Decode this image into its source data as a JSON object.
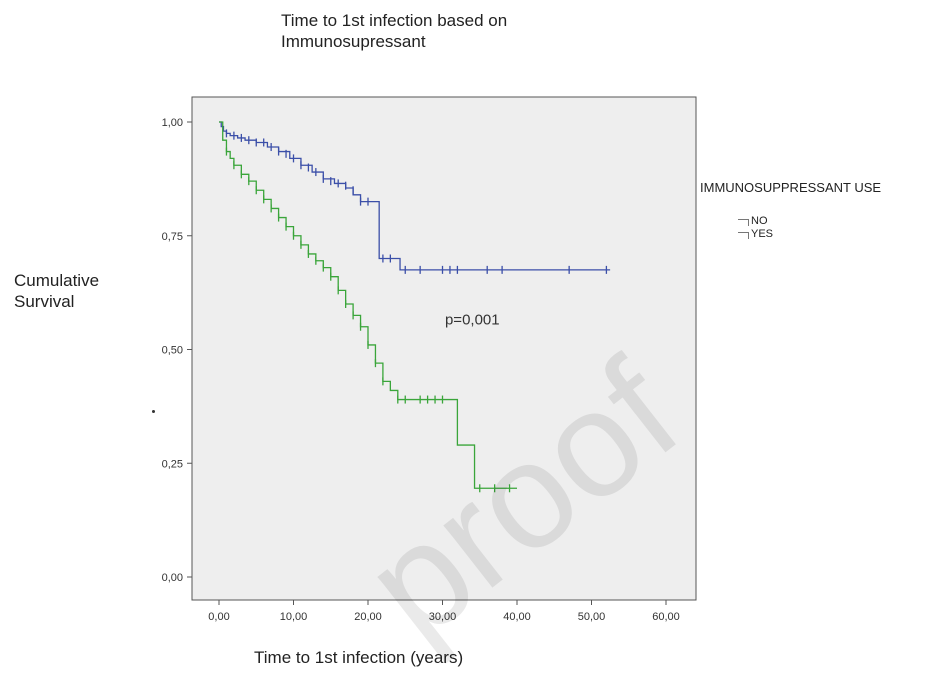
{
  "chart_data": {
    "type": "line",
    "title": "Time to 1st infection based on Immunosupressant",
    "xlabel": "Time to 1st infection (years)",
    "ylabel": "Cumulative Survival",
    "xlim": [
      -3,
      65
    ],
    "ylim": [
      -0.08,
      1.06
    ],
    "x_ticks": [
      "0,00",
      "10,00",
      "20,00",
      "30,00",
      "40,00",
      "50,00",
      "60,00"
    ],
    "x_tick_values": [
      0,
      10,
      20,
      30,
      40,
      50,
      60
    ],
    "y_ticks": [
      "0,00",
      "0,25",
      "0,50",
      "0,75",
      "1,00"
    ],
    "y_tick_values": [
      0,
      0.25,
      0.5,
      0.75,
      1.0
    ],
    "legend_title": "IMMUNOSUPPRESSANT USE",
    "legend_position": "right",
    "grid": false,
    "background": "#eeeeee",
    "annotation": "p=0,001",
    "watermark": "proof",
    "series": [
      {
        "name": "NO",
        "color": "#3b4fa8",
        "points": [
          [
            0,
            1.0
          ],
          [
            0.3,
            0.99
          ],
          [
            0.6,
            0.98
          ],
          [
            1.0,
            0.975
          ],
          [
            1.5,
            0.97
          ],
          [
            2.5,
            0.965
          ],
          [
            3.5,
            0.96
          ],
          [
            5,
            0.955
          ],
          [
            6.5,
            0.945
          ],
          [
            8,
            0.935
          ],
          [
            9.5,
            0.92
          ],
          [
            11,
            0.905
          ],
          [
            12.5,
            0.89
          ],
          [
            14,
            0.875
          ],
          [
            15.5,
            0.865
          ],
          [
            17,
            0.855
          ],
          [
            18,
            0.84
          ],
          [
            19,
            0.825
          ],
          [
            21,
            0.825
          ],
          [
            21.5,
            0.7
          ],
          [
            24,
            0.7
          ],
          [
            24.3,
            0.675
          ],
          [
            52.5,
            0.675
          ]
        ],
        "censors": [
          [
            1,
            0.975
          ],
          [
            2,
            0.97
          ],
          [
            3,
            0.965
          ],
          [
            4,
            0.96
          ],
          [
            5,
            0.955
          ],
          [
            6,
            0.955
          ],
          [
            7,
            0.945
          ],
          [
            8,
            0.935
          ],
          [
            9,
            0.93
          ],
          [
            10,
            0.92
          ],
          [
            11,
            0.905
          ],
          [
            12,
            0.9
          ],
          [
            13,
            0.89
          ],
          [
            14,
            0.875
          ],
          [
            15,
            0.87
          ],
          [
            16,
            0.865
          ],
          [
            17,
            0.86
          ],
          [
            18,
            0.85
          ],
          [
            19,
            0.825
          ],
          [
            20,
            0.825
          ],
          [
            22,
            0.7
          ],
          [
            23,
            0.7
          ],
          [
            25,
            0.675
          ],
          [
            27,
            0.675
          ],
          [
            30,
            0.675
          ],
          [
            31,
            0.675
          ],
          [
            32,
            0.675
          ],
          [
            36,
            0.675
          ],
          [
            38,
            0.675
          ],
          [
            47,
            0.675
          ],
          [
            52,
            0.675
          ]
        ]
      },
      {
        "name": "YES",
        "color": "#3aa53a",
        "points": [
          [
            0,
            1.0
          ],
          [
            0.5,
            0.96
          ],
          [
            1,
            0.935
          ],
          [
            1.5,
            0.92
          ],
          [
            2,
            0.905
          ],
          [
            3,
            0.885
          ],
          [
            4,
            0.87
          ],
          [
            5,
            0.85
          ],
          [
            6,
            0.83
          ],
          [
            7,
            0.81
          ],
          [
            8,
            0.79
          ],
          [
            9,
            0.77
          ],
          [
            10,
            0.75
          ],
          [
            11,
            0.73
          ],
          [
            12,
            0.71
          ],
          [
            13,
            0.695
          ],
          [
            14,
            0.68
          ],
          [
            15,
            0.66
          ],
          [
            16,
            0.63
          ],
          [
            17,
            0.6
          ],
          [
            18,
            0.575
          ],
          [
            19,
            0.55
          ],
          [
            20,
            0.51
          ],
          [
            21,
            0.47
          ],
          [
            22,
            0.43
          ],
          [
            23,
            0.41
          ],
          [
            24,
            0.39
          ],
          [
            31.5,
            0.39
          ],
          [
            32,
            0.29
          ],
          [
            34,
            0.29
          ],
          [
            34.3,
            0.195
          ],
          [
            40,
            0.195
          ]
        ],
        "censors": [
          [
            1,
            0.935
          ],
          [
            2,
            0.905
          ],
          [
            3,
            0.885
          ],
          [
            4,
            0.87
          ],
          [
            5,
            0.85
          ],
          [
            6,
            0.83
          ],
          [
            7,
            0.81
          ],
          [
            8,
            0.79
          ],
          [
            9,
            0.77
          ],
          [
            10,
            0.75
          ],
          [
            11,
            0.73
          ],
          [
            12,
            0.71
          ],
          [
            13,
            0.695
          ],
          [
            14,
            0.68
          ],
          [
            15,
            0.66
          ],
          [
            16,
            0.63
          ],
          [
            17,
            0.6
          ],
          [
            18,
            0.575
          ],
          [
            19,
            0.55
          ],
          [
            20,
            0.51
          ],
          [
            21,
            0.47
          ],
          [
            22,
            0.43
          ],
          [
            24,
            0.39
          ],
          [
            25,
            0.39
          ],
          [
            27,
            0.39
          ],
          [
            28,
            0.39
          ],
          [
            29,
            0.39
          ],
          [
            30,
            0.39
          ],
          [
            35,
            0.195
          ],
          [
            37,
            0.195
          ],
          [
            39,
            0.195
          ]
        ]
      }
    ]
  }
}
